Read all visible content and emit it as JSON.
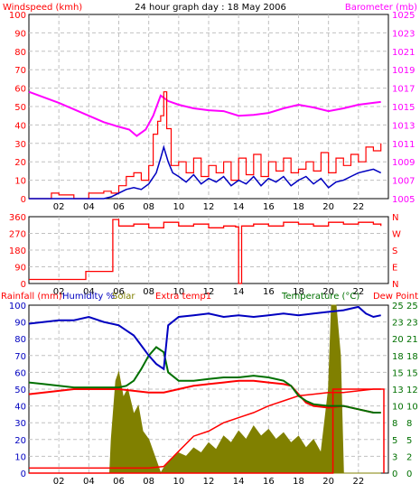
{
  "chart_data": [
    {
      "type": "line",
      "title": "24 hour graph day : 18 May 2006",
      "ylabel_left": "Windspeed (kmh)",
      "ylabel_right": "Barometer (mb)",
      "x_ticks": [
        "02",
        "04",
        "06",
        "08",
        "10",
        "12",
        "14",
        "16",
        "18",
        "20",
        "22"
      ],
      "ylim_left": [
        0,
        100
      ],
      "y_ticks_left": [
        "0",
        "10",
        "20",
        "30",
        "40",
        "50",
        "60",
        "70",
        "80",
        "90",
        "100"
      ],
      "ylim_right": [
        1005,
        1025
      ],
      "y_ticks_right": [
        "1005",
        "1007",
        "1009",
        "1011",
        "1013",
        "1015",
        "1017",
        "1019",
        "1021",
        "1023",
        "1025"
      ],
      "colors": {
        "gust": "#ff0000",
        "wind": "#0000c0",
        "barometer": "#ff00ff"
      },
      "series": [
        {
          "key": "barometer",
          "axis": "right",
          "x": [
            0,
            1,
            2,
            3,
            4,
            5,
            6,
            6.7,
            7.2,
            7.8,
            8.3,
            8.8,
            9.3,
            10,
            11,
            12,
            13,
            14,
            15,
            16,
            17,
            18,
            19,
            20,
            21,
            22,
            23,
            23.5
          ],
          "values": [
            1016.6,
            1016,
            1015.4,
            1014.7,
            1014,
            1013.3,
            1012.8,
            1012.5,
            1011.8,
            1012.5,
            1014,
            1016.2,
            1015.6,
            1015.2,
            1014.8,
            1014.6,
            1014.5,
            1014,
            1014.1,
            1014.3,
            1014.8,
            1015.2,
            1014.9,
            1014.5,
            1014.8,
            1015.2,
            1015.4,
            1015.5
          ]
        },
        {
          "key": "gust",
          "axis": "left",
          "x": [
            0,
            1,
            1.5,
            2,
            3,
            4,
            5,
            5.5,
            6,
            6.5,
            7,
            7.5,
            8,
            8.3,
            8.6,
            8.8,
            9,
            9.2,
            9.5,
            10,
            10.5,
            11,
            11.5,
            12,
            12.5,
            13,
            13.5,
            14,
            14.5,
            15,
            15.5,
            16,
            16.5,
            17,
            17.5,
            18,
            18.5,
            19,
            19.5,
            20,
            20.5,
            21,
            21.5,
            22,
            22.5,
            23,
            23.5
          ],
          "values": [
            0,
            0,
            3,
            2,
            0,
            3,
            4,
            3,
            7,
            12,
            14,
            10,
            18,
            35,
            42,
            45,
            58,
            38,
            18,
            20,
            14,
            22,
            12,
            18,
            14,
            20,
            10,
            22,
            13,
            24,
            12,
            20,
            15,
            22,
            14,
            16,
            20,
            15,
            25,
            14,
            22,
            18,
            24,
            20,
            28,
            26,
            30
          ]
        },
        {
          "key": "wind",
          "axis": "left",
          "x": [
            0,
            5,
            5.5,
            6,
            6.5,
            7,
            7.5,
            8,
            8.5,
            8.8,
            9,
            9.3,
            9.6,
            10,
            10.5,
            11,
            11.5,
            12,
            12.5,
            13,
            13.5,
            14,
            14.5,
            15,
            15.5,
            16,
            16.5,
            17,
            17.5,
            18,
            18.5,
            19,
            19.5,
            20,
            20.5,
            21,
            21.5,
            22,
            22.5,
            23,
            23.5
          ],
          "values": [
            0,
            0,
            1,
            3,
            5,
            6,
            5,
            8,
            14,
            22,
            28,
            20,
            14,
            12,
            9,
            13,
            8,
            11,
            9,
            12,
            7,
            10,
            8,
            12,
            7,
            11,
            9,
            12,
            7,
            10,
            12,
            8,
            11,
            6,
            9,
            10,
            12,
            14,
            15,
            16,
            14
          ]
        }
      ]
    },
    {
      "type": "line",
      "x_ticks": [
        "02",
        "04",
        "06",
        "08",
        "10",
        "12",
        "14",
        "16",
        "18",
        "20",
        "22"
      ],
      "ylim": [
        0,
        360
      ],
      "y_ticks_left": [
        "0",
        "90",
        "180",
        "270",
        "360"
      ],
      "y_ticks_right": [
        "N",
        "E",
        "S",
        "W",
        "N"
      ],
      "colors": {
        "direction": "#ff0000"
      },
      "series": [
        {
          "key": "direction",
          "x": [
            0,
            2,
            3.8,
            5.5,
            5.6,
            6,
            7,
            8,
            9,
            10,
            11,
            12,
            13,
            13.8,
            14,
            14.2,
            15,
            16,
            17,
            18,
            19,
            20,
            21,
            22,
            23,
            23.5
          ],
          "values": [
            22,
            22,
            65,
            65,
            345,
            310,
            320,
            300,
            330,
            310,
            320,
            300,
            310,
            305,
            0,
            310,
            320,
            310,
            330,
            320,
            310,
            330,
            320,
            330,
            320,
            310
          ]
        }
      ]
    },
    {
      "type": "line",
      "legend": [
        "Rainfall (mm)",
        "Humidity %",
        "Solar",
        "Extra temp1",
        "Temperature (°C)",
        "Dew Point"
      ],
      "x_ticks": [
        "02",
        "04",
        "06",
        "08",
        "10",
        "12",
        "14",
        "16",
        "18",
        "20",
        "22"
      ],
      "ylim_left": [
        0,
        100
      ],
      "y_ticks_rain": [
        "0",
        "2",
        "5",
        "8",
        "10",
        "12",
        "15",
        "18",
        "21",
        "23",
        "25"
      ],
      "y_ticks_humidity": [
        "0",
        "10",
        "20",
        "30",
        "40",
        "50",
        "60",
        "70",
        "80",
        "90",
        "100"
      ],
      "y_ticks_temp_a": [
        "0",
        "3",
        "5",
        "8",
        "10",
        "13",
        "15",
        "18",
        "20",
        "23",
        "25"
      ],
      "y_ticks_temp_b": [
        "0",
        "2",
        "5",
        "8",
        "10",
        "12",
        "15",
        "18",
        "21",
        "23",
        "25"
      ],
      "colors": {
        "rainfall": "#ff0000",
        "humidity": "#0000c0",
        "solar": "#808000",
        "extra_temp": "#ff0000",
        "temperature": "#007000",
        "dew_point": "#ff0000"
      },
      "series": [
        {
          "key": "humidity",
          "x": [
            0,
            1,
            2,
            3,
            4,
            5,
            6,
            6.5,
            7,
            7.5,
            8,
            8.5,
            9,
            9.3,
            10,
            11,
            12,
            13,
            14,
            15,
            16,
            17,
            18,
            19,
            20,
            21,
            22,
            22.5,
            23,
            23.5
          ],
          "values": [
            89,
            90,
            91,
            91,
            93,
            90,
            88,
            85,
            82,
            76,
            70,
            65,
            62,
            88,
            93,
            94,
            95,
            93,
            94,
            93,
            94,
            95,
            94,
            95,
            96,
            97,
            99,
            95,
            93,
            94
          ]
        },
        {
          "key": "temperature",
          "x": [
            0,
            1,
            2,
            3,
            4,
            5,
            6,
            6.5,
            7,
            7.5,
            8,
            8.5,
            9,
            9.3,
            10,
            11,
            12,
            13,
            14,
            15,
            16,
            17,
            17.5,
            18,
            18.5,
            19,
            20,
            21,
            22,
            23,
            23.5
          ],
          "values": [
            54,
            53,
            52,
            51,
            51,
            51,
            51,
            52,
            55,
            62,
            70,
            75,
            72,
            60,
            55,
            55,
            56,
            57,
            57,
            58,
            57,
            55,
            52,
            46,
            43,
            41,
            40,
            40,
            38,
            36,
            36
          ]
        },
        {
          "key": "dew_point",
          "x": [
            0,
            1,
            2,
            3,
            4,
            5,
            6,
            7,
            8,
            9,
            10,
            11,
            12,
            13,
            14,
            15,
            16,
            17,
            17.5,
            18,
            18.5,
            19,
            20,
            21,
            22,
            23,
            23.5
          ],
          "values": [
            47,
            48,
            49,
            50,
            50,
            50,
            50,
            49,
            48,
            48,
            50,
            52,
            53,
            54,
            55,
            55,
            54,
            53,
            52,
            47,
            42,
            40,
            39,
            40,
            38,
            36,
            36
          ]
        },
        {
          "key": "extra_temp",
          "x": [
            0,
            5,
            6,
            7,
            8,
            9,
            10,
            11,
            12,
            13,
            14,
            15,
            16,
            17,
            18,
            19,
            20,
            20.5,
            21,
            22,
            23,
            23.5
          ],
          "values": [
            3,
            3,
            3,
            3,
            3,
            4,
            13,
            22,
            25,
            30,
            33,
            36,
            40,
            43,
            46,
            47,
            48,
            48,
            48,
            49,
            50,
            50
          ]
        },
        {
          "key": "rainfall",
          "x": [
            0,
            20.3,
            20.3,
            23.7,
            23.7
          ],
          "values": [
            0,
            0,
            50,
            50,
            0
          ]
        },
        {
          "key": "solar",
          "x": [
            0,
            5.4,
            5.5,
            5.8,
            6,
            6.3,
            6.6,
            7,
            7.3,
            7.6,
            8,
            8.4,
            8.8,
            9,
            9.5,
            10,
            10.5,
            11,
            11.5,
            12,
            12.5,
            13,
            13.5,
            14,
            14.5,
            15,
            15.5,
            16,
            16.5,
            17,
            17.5,
            18,
            18.5,
            19,
            19.5,
            20,
            20.2,
            20.5,
            20.8,
            21,
            21.5,
            22,
            22.5,
            23,
            23.5
          ],
          "values": [
            0,
            0,
            20,
            55,
            60,
            45,
            50,
            35,
            40,
            25,
            20,
            10,
            0,
            3,
            8,
            12,
            10,
            15,
            12,
            18,
            14,
            22,
            18,
            25,
            20,
            28,
            22,
            26,
            20,
            24,
            18,
            22,
            15,
            20,
            12,
            50,
            100,
            100,
            70,
            0,
            0,
            0,
            0,
            0,
            0
          ]
        }
      ]
    }
  ]
}
